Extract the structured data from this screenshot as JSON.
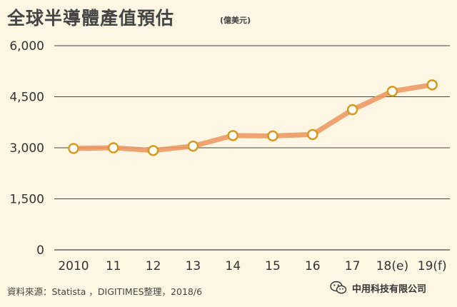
{
  "title": "全球半導體產值預估",
  "title_unit": "(億美元)",
  "source": "資料來源：Statista ，DIGITIMES整理，2018/6",
  "watermark": {
    "text": "中用科技有限公司",
    "icon": "wechat-icon"
  },
  "colors": {
    "background": "#fdf6e3",
    "line": "#ec9a63",
    "marker_fill": "#ffffff",
    "marker_stroke": "#d89a1e",
    "grid": "#444444"
  },
  "chart_data": {
    "type": "line",
    "title": "全球半導體產值預估",
    "ylabel": "(億美元)",
    "categories": [
      "2010",
      "11",
      "12",
      "13",
      "14",
      "15",
      "16",
      "17",
      "18(e)",
      "19(f)"
    ],
    "values": [
      2980,
      3000,
      2920,
      3050,
      3360,
      3350,
      3390,
      4120,
      4660,
      4850
    ],
    "yticks": [
      "0",
      "1,500",
      "3,000",
      "4,500",
      "6,000"
    ],
    "ytick_values": [
      0,
      1500,
      3000,
      4500,
      6000
    ],
    "ylim": [
      0,
      6000
    ],
    "grid": "horizontal"
  }
}
